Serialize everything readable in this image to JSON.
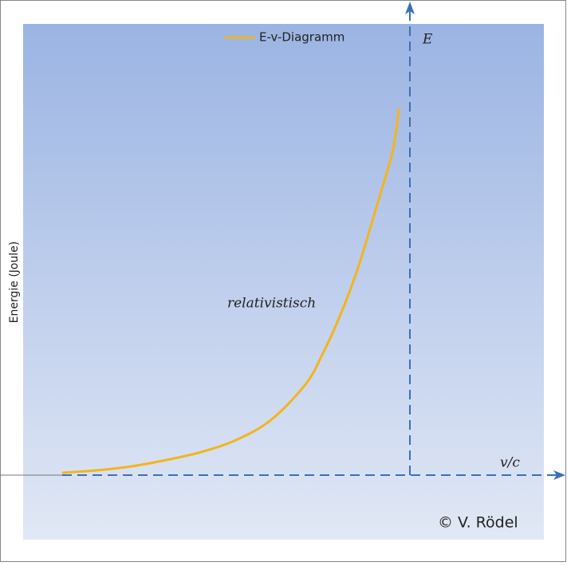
{
  "chart_data": {
    "type": "line",
    "y_axis_label": "Energie (Joule)",
    "axis_label_y": "E",
    "axis_label_x": "v/c",
    "annotation": "relativistisch",
    "credit": "© V. Rödel",
    "x": [
      0,
      0.1,
      0.2,
      0.3,
      0.4,
      0.5,
      0.6,
      0.7,
      0.75,
      0.8,
      0.85,
      0.9,
      0.95,
      0.968
    ],
    "series": [
      {
        "name": "E-v-Diagramm",
        "color": "#f2b51e",
        "values": [
          0.03,
          0.06,
          0.11,
          0.19,
          0.29,
          0.44,
          0.69,
          1.14,
          1.53,
          2.01,
          2.59,
          3.31,
          4.06,
          4.6
        ]
      }
    ],
    "xlim": [
      -0.112,
      1.385
    ],
    "ylim": [
      -0.81,
      5.66
    ],
    "legend": "top"
  }
}
